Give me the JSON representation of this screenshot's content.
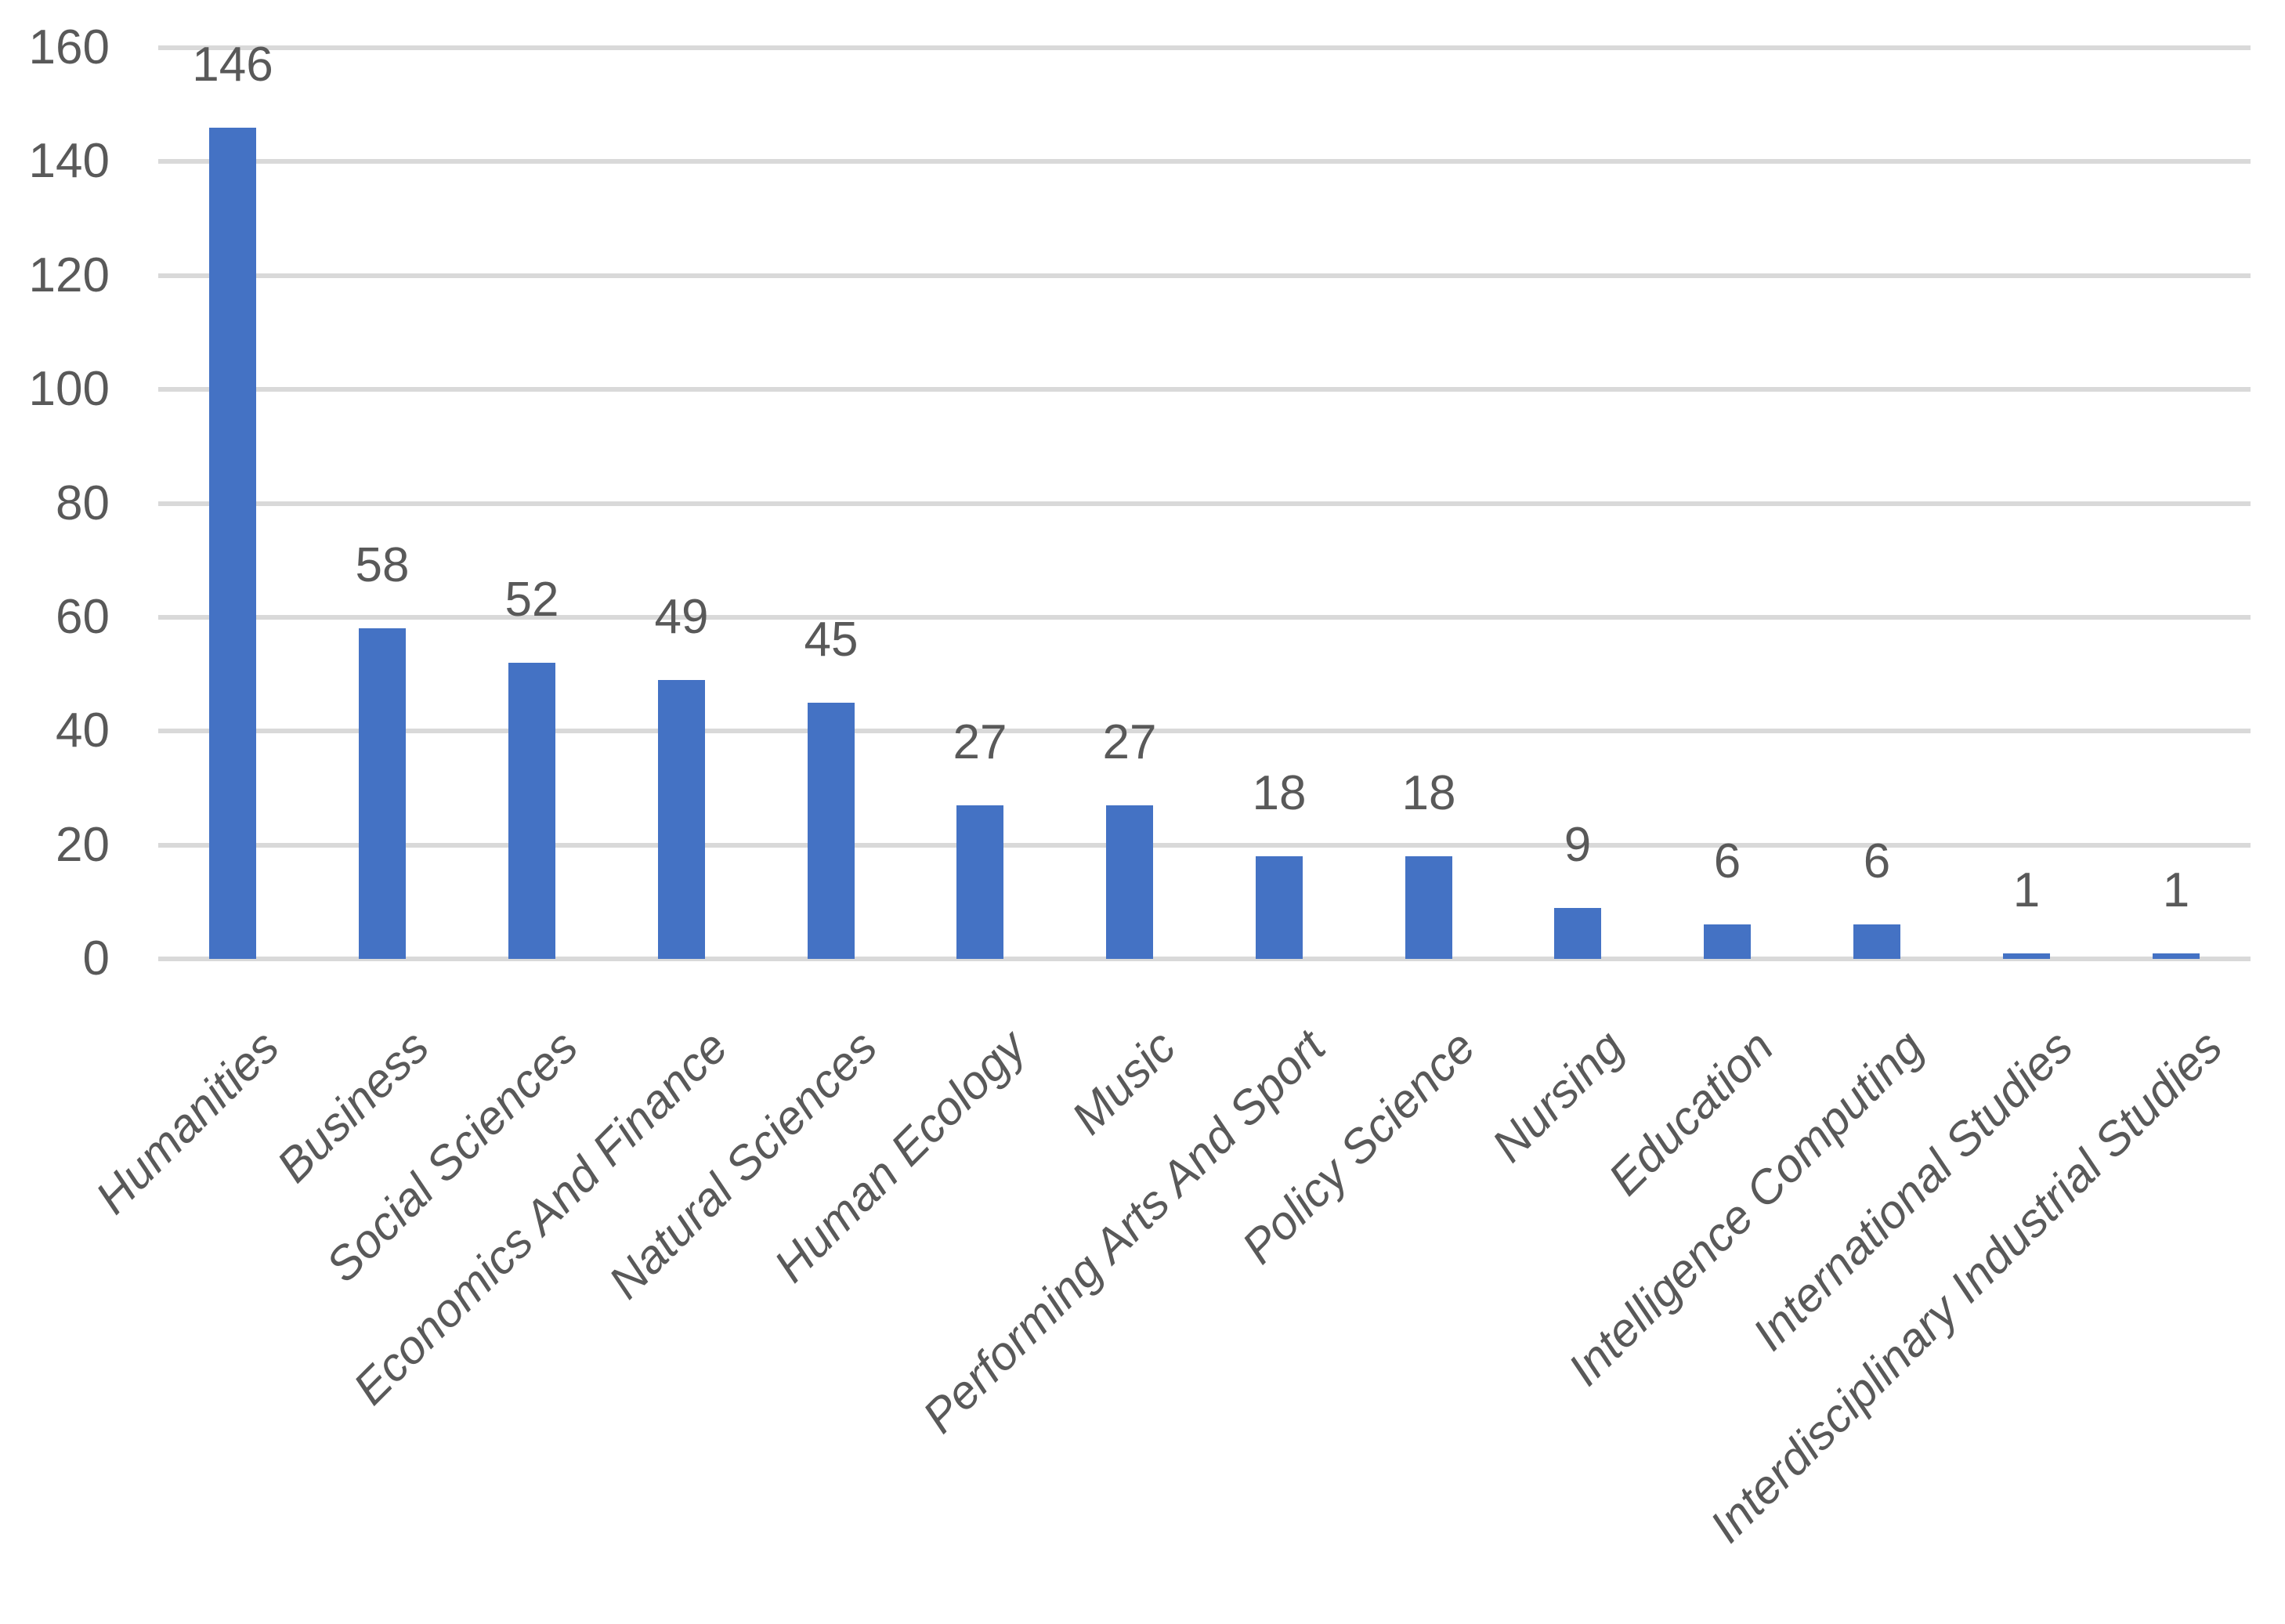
{
  "chart_data": {
    "type": "bar",
    "title": "",
    "xlabel": "",
    "ylabel": "",
    "categories": [
      "Humanities",
      "Business",
      "Social Sciences",
      "Economics And Finance",
      "Natural Sciences",
      "Human Ecology",
      "Music",
      "Performing Arts And Sport",
      "Policy Science",
      "Nursing",
      "Education",
      "Intelligence Computing",
      "International Studies",
      "Interdisciplinary Industrial Studies"
    ],
    "values": [
      146,
      58,
      52,
      49,
      45,
      27,
      27,
      18,
      18,
      9,
      6,
      6,
      1,
      1
    ],
    "ylim": [
      0,
      160
    ],
    "y_ticks": [
      0,
      20,
      40,
      60,
      80,
      100,
      120,
      140,
      160
    ],
    "grid": "horizontal",
    "legend": "none",
    "data_labels": true,
    "x_label_rotation_deg": 45,
    "bar_color": "#4472C4",
    "gridline_color": "#D9D9D9",
    "text_color": "#595959",
    "background_color": "#FFFFFF"
  }
}
